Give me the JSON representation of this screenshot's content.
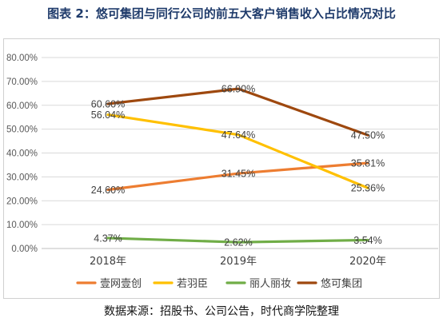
{
  "chart_data": {
    "type": "line",
    "title": "图表 2：悠可集团与同行公司的前五大客户销售收入占比情况对比",
    "categories": [
      "2018年",
      "2019年",
      "2020年"
    ],
    "ylim": [
      0,
      80
    ],
    "yticks": [
      "0.00%",
      "10.00%",
      "20.00%",
      "30.00%",
      "40.00%",
      "50.00%",
      "60.00%",
      "70.00%",
      "80.00%"
    ],
    "grid": true,
    "legend_position": "bottom",
    "series": [
      {
        "name": "壹网壹创",
        "color": "#ed7d31",
        "values": [
          24.6,
          31.45,
          35.81
        ],
        "labels": [
          "24.60%",
          "31.45%",
          "35.81%"
        ]
      },
      {
        "name": "若羽臣",
        "color": "#ffc000",
        "values": [
          56.04,
          47.64,
          25.36
        ],
        "labels": [
          "56.04%",
          "47.64%",
          "25.36%"
        ]
      },
      {
        "name": "丽人丽妆",
        "color": "#70ad47",
        "values": [
          4.37,
          2.62,
          3.54
        ],
        "labels": [
          "4.37%",
          "2.62%",
          "3.54%"
        ]
      },
      {
        "name": "悠可集团",
        "color": "#9e480e",
        "values": [
          60.6,
          66.9,
          47.5
        ],
        "labels": [
          "60.60%",
          "66.90%",
          "47.50%"
        ]
      }
    ]
  },
  "source": "数据来源：招股书、公司公告，时代商学院整理"
}
